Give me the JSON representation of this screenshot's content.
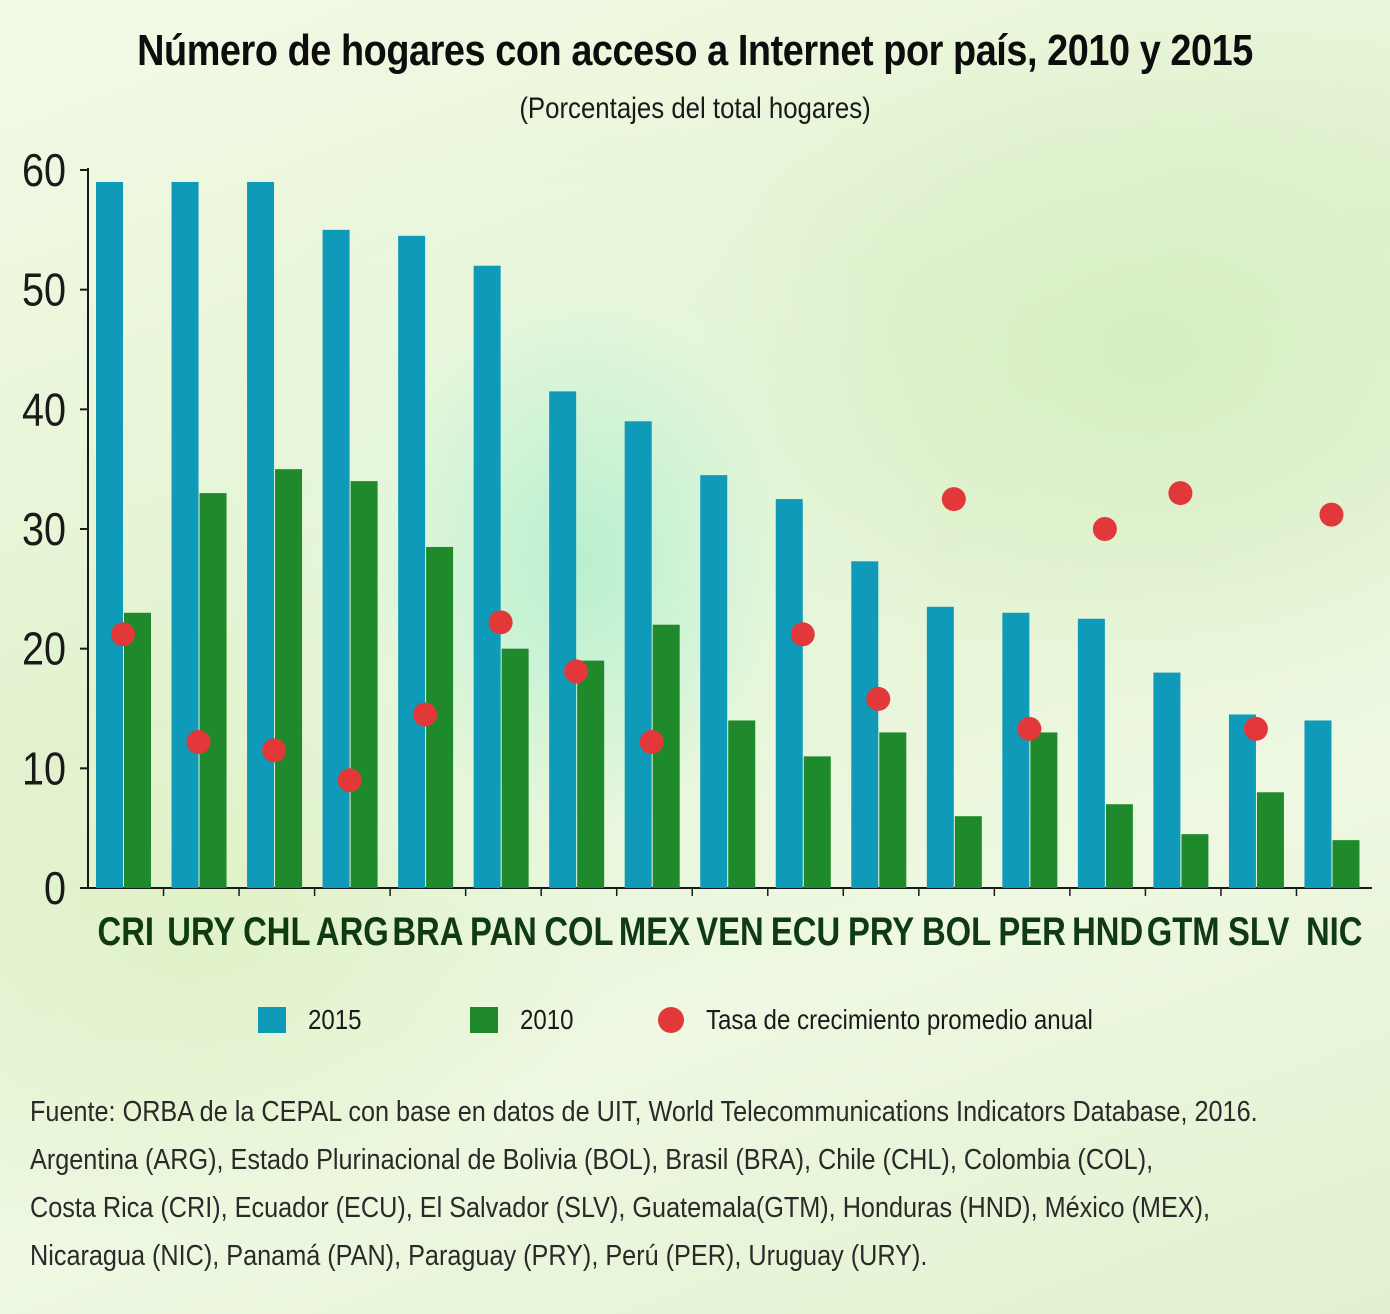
{
  "title": "Número de hogares con acceso a Internet por país, 2010 y 2015",
  "subtitle": "(Porcentajes del total hogares)",
  "colors": {
    "series_2015": "#0e9ab8",
    "series_2010": "#1f8a2c",
    "growth": "#e2383a",
    "axis": "#1a1a1a",
    "category_text": "#0f3a12"
  },
  "chart_data": {
    "type": "bar",
    "title": "Número de hogares con acceso a Internet por país, 2010 y 2015",
    "subtitle": "(Porcentajes del total hogares)",
    "xlabel": "",
    "ylabel": "",
    "ylim": [
      0,
      60
    ],
    "yticks": [
      0,
      10,
      20,
      30,
      40,
      50,
      60
    ],
    "grid": false,
    "categories": [
      "CRI",
      "URY",
      "CHL",
      "ARG",
      "BRA",
      "PAN",
      "COL",
      "MEX",
      "VEN",
      "ECU",
      "PRY",
      "BOL",
      "PER",
      "HND",
      "GTM",
      "SLV",
      "NIC"
    ],
    "series": [
      {
        "name": "2015",
        "type": "bar",
        "values": [
          59,
          59,
          59,
          55,
          54.5,
          52,
          41.5,
          39,
          34.5,
          32.5,
          27.3,
          23.5,
          23,
          22.5,
          18,
          14.5,
          14
        ]
      },
      {
        "name": "2010",
        "type": "bar",
        "values": [
          23,
          33,
          35,
          34,
          28.5,
          20,
          19,
          22,
          14,
          11,
          13,
          6,
          13,
          7,
          4.5,
          8,
          4
        ]
      },
      {
        "name": "Tasa de crecimiento promedio anual",
        "type": "scatter",
        "values": [
          21.2,
          12.2,
          11.5,
          9,
          14.5,
          22.2,
          18.1,
          12.2,
          null,
          21.2,
          15.8,
          32.5,
          13.3,
          30,
          33,
          13.3,
          31.2
        ]
      }
    ],
    "legend_position": "bottom"
  },
  "legend": {
    "item_2015": "2015",
    "item_2010": "2010",
    "item_growth": "Tasa de crecimiento promedio anual"
  },
  "source": {
    "line1": "Fuente: ORBA de la CEPAL con base en datos de UIT, World Telecommunications Indicators Database, 2016.",
    "line2": "Argentina (ARG), Estado Plurinacional de Bolivia (BOL), Brasil (BRA), Chile (CHL), Colombia (COL),",
    "line3": "Costa Rica (CRI), Ecuador (ECU), El Salvador (SLV), Guatemala(GTM), Honduras (HND), México (MEX),",
    "line4": "Nicaragua (NIC), Panamá (PAN), Paraguay (PRY), Perú (PER), Uruguay (URY)."
  }
}
